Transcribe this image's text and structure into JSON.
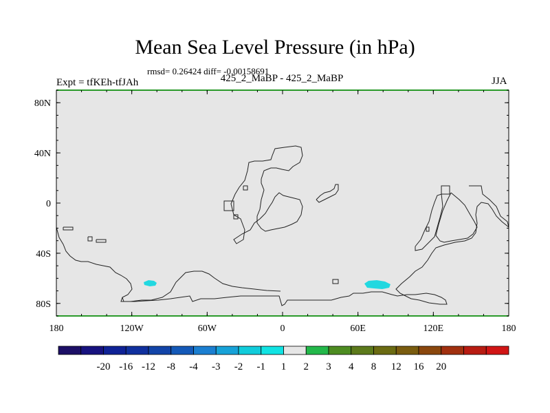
{
  "header": {
    "title": "Mean Sea Level Pressure (in hPa)",
    "stats": "rmsd= 0.26424 diff= -0.00158691",
    "subtitle": "425_2_MaBP - 425_2_MaBP",
    "expt": "Expt = tfKEh-tfJAh",
    "season": "JJA"
  },
  "axes": {
    "y_ticks": [
      "80N",
      "40N",
      "0",
      "40S",
      "80S"
    ],
    "x_ticks": [
      "180",
      "120W",
      "60W",
      "0",
      "60E",
      "120E",
      "180"
    ]
  },
  "colorbar": {
    "colors": [
      "#1c0f66",
      "#17127f",
      "#0f2296",
      "#10309e",
      "#1244a8",
      "#1459b8",
      "#1b7fd1",
      "#17a2d8",
      "#11ccdb",
      "#11e3e3",
      "#e6e6e6",
      "#23b84a",
      "#4d8c21",
      "#5c7a1b",
      "#6b6b12",
      "#7a5c0f",
      "#8a470d",
      "#a1300f",
      "#b81c12",
      "#d11515"
    ],
    "labels": [
      "-20",
      "-16",
      "-12",
      "-8",
      "-4",
      "-3",
      "-2",
      "-1",
      "1",
      "2",
      "3",
      "4",
      "8",
      "12",
      "16",
      "20"
    ]
  },
  "map": {
    "background_color": "#e6e6e6",
    "anomaly_color": "#22d8e0",
    "border_color": "#2a9a2a"
  }
}
